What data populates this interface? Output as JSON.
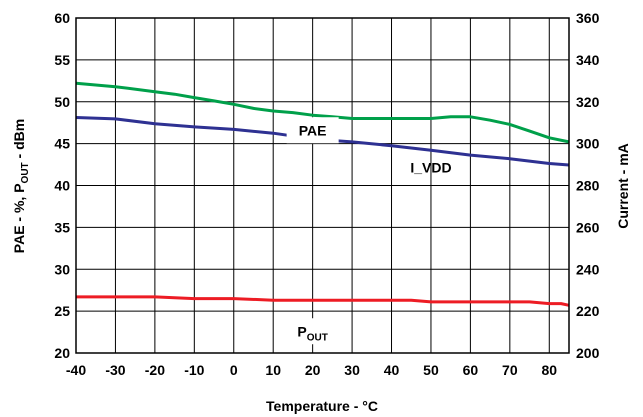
{
  "chart_data": {
    "type": "line",
    "xlabel": "Temperature - °C",
    "ylabel_left": {
      "main": "PAE - %, P",
      "sub": "OUT",
      "rest": " - dBm"
    },
    "ylabel_right": "Current - mA",
    "xlim": [
      -40,
      85
    ],
    "ylim_left": [
      20,
      60
    ],
    "ylim_right": [
      200,
      360
    ],
    "x_ticks": [
      -40,
      -30,
      -20,
      -10,
      0,
      10,
      20,
      30,
      40,
      50,
      60,
      70,
      80
    ],
    "x_tick_labels": [
      "-40",
      "-30",
      "-20",
      "-10",
      "0",
      "10",
      "20",
      "30",
      "40",
      "50",
      "60",
      "70",
      "80"
    ],
    "y_left_ticks": [
      20,
      25,
      30,
      35,
      40,
      45,
      50,
      55,
      60
    ],
    "y_left_tick_labels": [
      "20",
      "25",
      "30",
      "35",
      "40",
      "45",
      "50",
      "55",
      "60"
    ],
    "y_right_ticks": [
      200,
      220,
      240,
      260,
      280,
      300,
      320,
      340,
      360
    ],
    "y_right_tick_labels": [
      "200",
      "220",
      "240",
      "260",
      "280",
      "300",
      "320",
      "340",
      "360"
    ],
    "grid": true,
    "series": [
      {
        "name": "PAE",
        "label": {
          "main": "PAE",
          "sub": ""
        },
        "axis": "left",
        "color": "#00a04a",
        "x": [
          -40,
          -30,
          -20,
          -15,
          -10,
          -5,
          0,
          5,
          10,
          15,
          20,
          25,
          30,
          40,
          50,
          55,
          60,
          65,
          70,
          75,
          80,
          85
        ],
        "y": [
          52.2,
          51.8,
          51.2,
          50.9,
          50.5,
          50.1,
          49.7,
          49.2,
          48.9,
          48.7,
          48.4,
          48.2,
          48.0,
          48.0,
          48.0,
          48.2,
          48.2,
          47.8,
          47.3,
          46.5,
          45.7,
          45.2
        ]
      },
      {
        "name": "I_VDD",
        "label": {
          "main": "I_VDD",
          "sub": ""
        },
        "axis": "right",
        "color": "#2e3192",
        "x": [
          -40,
          -30,
          -20,
          -10,
          0,
          10,
          20,
          25,
          30,
          40,
          50,
          60,
          70,
          80,
          85
        ],
        "y": [
          312.5,
          311.8,
          309.5,
          308.0,
          306.8,
          305.0,
          302.3,
          301.5,
          300.8,
          299.0,
          296.8,
          294.5,
          292.8,
          290.5,
          289.8
        ]
      },
      {
        "name": "POUT",
        "label": {
          "main": "P",
          "sub": "OUT"
        },
        "axis": "left",
        "color": "#ed1c24",
        "x": [
          -40,
          -30,
          -20,
          -10,
          0,
          10,
          20,
          30,
          40,
          45,
          50,
          60,
          70,
          75,
          80,
          83,
          85
        ],
        "y": [
          26.7,
          26.7,
          26.7,
          26.5,
          26.5,
          26.3,
          26.3,
          26.3,
          26.3,
          26.3,
          26.1,
          26.1,
          26.1,
          26.1,
          25.9,
          25.9,
          25.7
        ]
      }
    ]
  }
}
